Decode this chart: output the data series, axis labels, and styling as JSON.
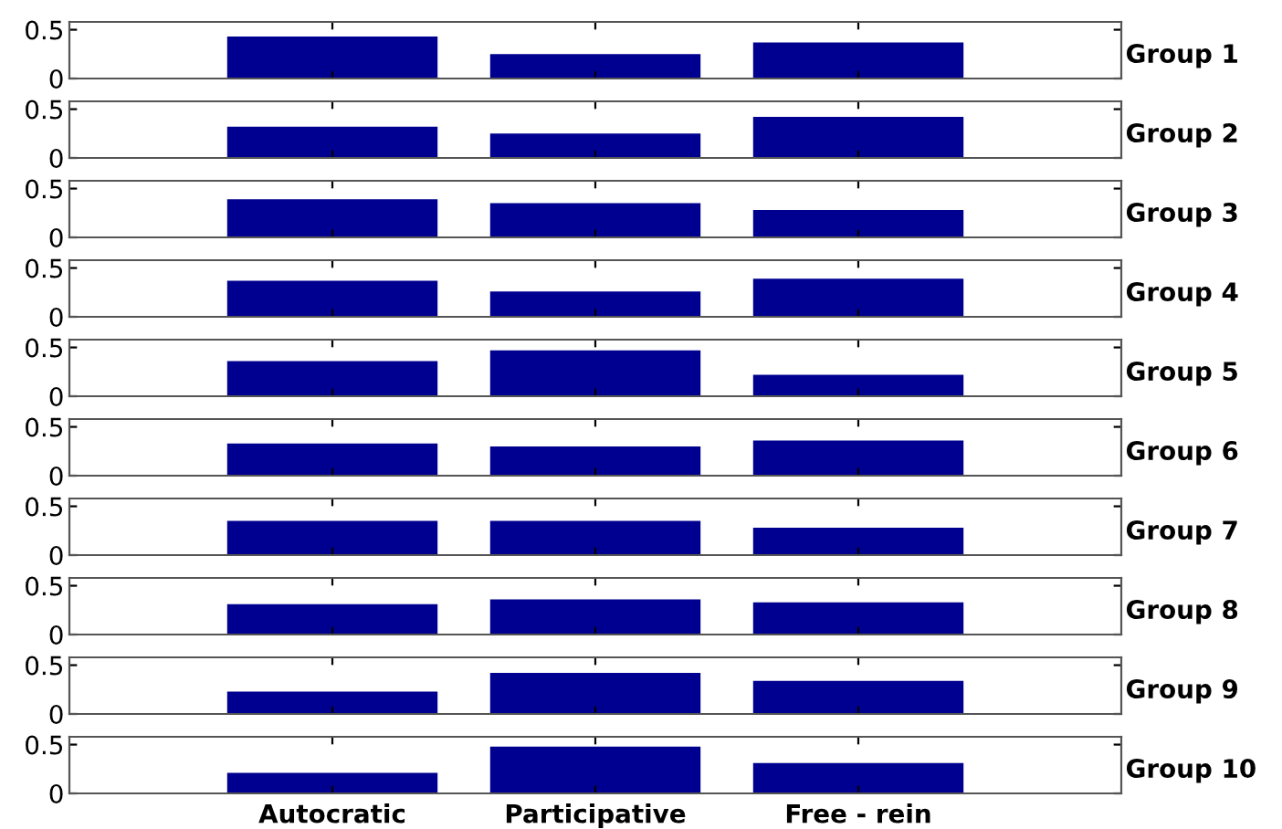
{
  "chart_data": [
    {
      "type": "bar",
      "ylabel": "Group 1",
      "categories": [
        null,
        null,
        null
      ],
      "values": [
        0.43,
        0.25,
        0.37
      ],
      "color": "#000090",
      "ylim": [
        0,
        0.58
      ],
      "yticks": [
        0,
        0.5
      ],
      "tick_labels": "y"
    },
    {
      "type": "bar",
      "ylabel": "Group 2",
      "categories": [
        null,
        null,
        null
      ],
      "values": [
        0.32,
        0.25,
        0.42
      ],
      "color": "#000090",
      "ylim": [
        0,
        0.58
      ],
      "yticks": [
        0,
        0.5
      ],
      "tick_labels": "y"
    },
    {
      "type": "bar",
      "ylabel": "Group 3",
      "categories": [
        null,
        null,
        null
      ],
      "values": [
        0.39,
        0.35,
        0.28
      ],
      "color": "#000090",
      "ylim": [
        0,
        0.58
      ],
      "yticks": [
        0,
        0.5
      ],
      "tick_labels": "y"
    },
    {
      "type": "bar",
      "ylabel": "Group 4",
      "categories": [
        null,
        null,
        null
      ],
      "values": [
        0.37,
        0.26,
        0.39
      ],
      "color": "#000090",
      "ylim": [
        0,
        0.58
      ],
      "yticks": [
        0,
        0.5
      ],
      "tick_labels": "y"
    },
    {
      "type": "bar",
      "ylabel": "Group 5",
      "categories": [
        null,
        null,
        null
      ],
      "values": [
        0.36,
        0.47,
        0.22
      ],
      "color": "#000090",
      "ylim": [
        0,
        0.58
      ],
      "yticks": [
        0,
        0.5
      ],
      "tick_labels": "y"
    },
    {
      "type": "bar",
      "ylabel": "Group 6",
      "categories": [
        null,
        null,
        null
      ],
      "values": [
        0.33,
        0.3,
        0.36
      ],
      "color": "#000090",
      "ylim": [
        0,
        0.58
      ],
      "yticks": [
        0,
        0.5
      ],
      "tick_labels": "y"
    },
    {
      "type": "bar",
      "ylabel": "Group 7",
      "categories": [
        null,
        null,
        null
      ],
      "values": [
        0.35,
        0.35,
        0.28
      ],
      "color": "#000090",
      "ylim": [
        0,
        0.58
      ],
      "yticks": [
        0,
        0.5
      ],
      "tick_labels": "y"
    },
    {
      "type": "bar",
      "ylabel": "Group 8",
      "categories": [
        null,
        null,
        null
      ],
      "values": [
        0.31,
        0.36,
        0.33
      ],
      "color": "#000090",
      "ylim": [
        0,
        0.58
      ],
      "yticks": [
        0,
        0.5
      ],
      "tick_labels": "y"
    },
    {
      "type": "bar",
      "ylabel": "Group 9",
      "categories": [
        null,
        null,
        null
      ],
      "values": [
        0.23,
        0.42,
        0.34
      ],
      "color": "#000090",
      "ylim": [
        0,
        0.58
      ],
      "yticks": [
        0,
        0.5
      ],
      "tick_labels": "y"
    },
    {
      "type": "bar",
      "ylabel": "Group 10",
      "categories": [
        "Autocratic",
        "Participative",
        "Free - rein"
      ],
      "values": [
        0.21,
        0.48,
        0.31
      ],
      "color": "#000090",
      "ylim": [
        0,
        0.58
      ],
      "yticks": [
        0,
        0.5
      ]
    }
  ]
}
